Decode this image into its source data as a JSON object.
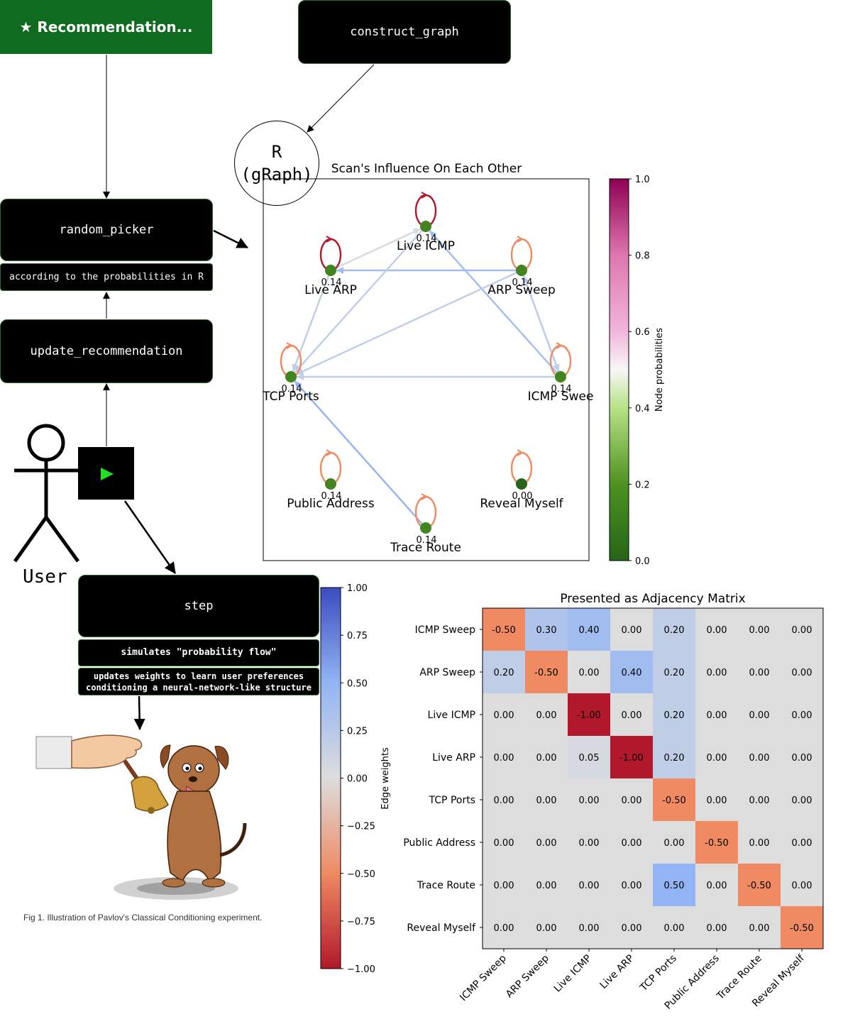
{
  "banner": {
    "text": "★ Recommendation..."
  },
  "boxes": {
    "construct_graph": "construct_graph",
    "random_picker": "random_picker",
    "random_picker_note": "according to the probabilities in R",
    "update_recommendation": "update_recommendation",
    "step": "step",
    "step_note1": "simulates \"probability flow\"",
    "step_note2": [
      "updates weights to learn user preferences",
      "conditioning a neural-network-like structure"
    ]
  },
  "r_node": {
    "line1": "R",
    "line2": "(gRaph)"
  },
  "user": {
    "label": "User"
  },
  "caption": "Fig 1. Illustration of Pavlov's Classical Conditioning experiment.",
  "colors": {
    "banner": "#0e6b1f",
    "play": "#22dd22"
  },
  "icons": [
    "play-icon",
    "stick-figure-icon",
    "dog-icon",
    "bell-icon",
    "hand-icon"
  ],
  "chart_data": [
    {
      "type": "network",
      "title": "Scan's Influence On Each Other",
      "nodes": [
        {
          "name": "Live ICMP",
          "prob": 0.14,
          "prob_label": "0.14"
        },
        {
          "name": "Live ARP",
          "prob": 0.14,
          "prob_label": "0.14"
        },
        {
          "name": "ARP Sweep",
          "prob": 0.14,
          "prob_label": "0.14"
        },
        {
          "name": "TCP Ports",
          "prob": 0.14,
          "prob_label": "0.14"
        },
        {
          "name": "ICMP Sweep",
          "label_shown": "ICMP Swee",
          "prob": 0.14,
          "prob_label": "0.14"
        },
        {
          "name": "Public Address",
          "prob": 0.14,
          "prob_label": "0.14"
        },
        {
          "name": "Reveal Myself",
          "prob": 0.0,
          "prob_label": "0.00"
        },
        {
          "name": "Trace Route",
          "prob": 0.14,
          "prob_label": "0.14"
        }
      ],
      "colorbar": {
        "label": "Node probabilities",
        "ticks": [
          "1.0",
          "0.8",
          "0.6",
          "0.4",
          "0.2",
          "0.0"
        ],
        "range": [
          0,
          1
        ]
      }
    },
    {
      "type": "heatmap",
      "title": "Presented as Adjacency Matrix",
      "rows": [
        "ICMP Sweep",
        "ARP Sweep",
        "Live ICMP",
        "Live ARP",
        "TCP Ports",
        "Public Address",
        "Trace Route",
        "Reveal Myself"
      ],
      "columns": [
        "ICMP Sweep",
        "ARP Sweep",
        "Live ICMP",
        "Live ARP",
        "TCP Ports",
        "Public Address",
        "Trace Route",
        "Reveal Myself"
      ],
      "values": [
        [
          -0.5,
          0.3,
          0.4,
          0.0,
          0.2,
          0.0,
          0.0,
          0.0
        ],
        [
          0.2,
          -0.5,
          0.0,
          0.4,
          0.2,
          0.0,
          0.0,
          0.0
        ],
        [
          0.0,
          0.0,
          -1.0,
          0.0,
          0.2,
          0.0,
          0.0,
          0.0
        ],
        [
          0.0,
          0.0,
          0.05,
          -1.0,
          0.2,
          0.0,
          0.0,
          0.0
        ],
        [
          0.0,
          0.0,
          0.0,
          0.0,
          -0.5,
          0.0,
          0.0,
          0.0
        ],
        [
          0.0,
          0.0,
          0.0,
          0.0,
          0.0,
          -0.5,
          0.0,
          0.0
        ],
        [
          0.0,
          0.0,
          0.0,
          0.0,
          0.5,
          0.0,
          -0.5,
          0.0
        ],
        [
          0.0,
          0.0,
          0.0,
          0.0,
          0.0,
          0.0,
          0.0,
          -0.5
        ]
      ],
      "colorbar": {
        "label": "Edge weights",
        "ticks": [
          "1.00",
          "0.75",
          "0.50",
          "0.25",
          "0.00",
          "−0.25",
          "−0.50",
          "−0.75",
          "−1.00"
        ],
        "range": [
          -1,
          1
        ]
      }
    }
  ]
}
